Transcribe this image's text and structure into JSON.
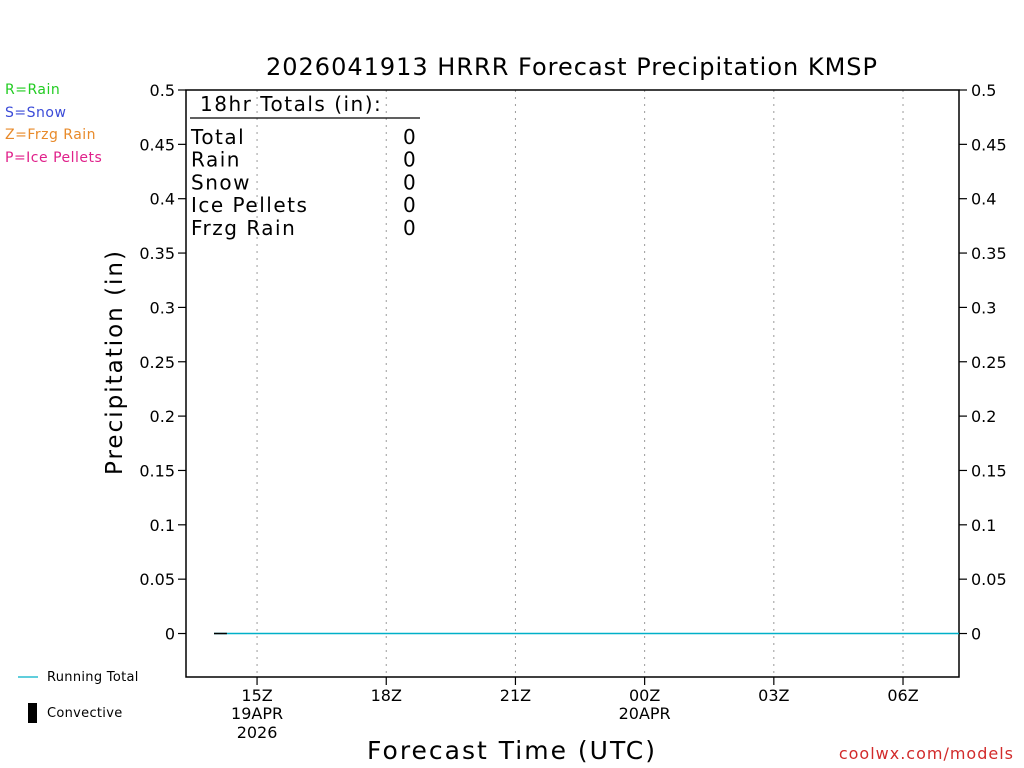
{
  "chart_data": {
    "type": "line",
    "title": "2026041913 HRRR Forecast Precipitation KMSP",
    "xlabel": "Forecast Time (UTC)",
    "ylabel": "Precipitation (in)",
    "ylim": [
      -0.04,
      0.5
    ],
    "y_ticks": [
      0,
      0.05,
      0.1,
      0.15,
      0.2,
      0.25,
      0.3,
      0.35,
      0.4,
      0.45,
      0.5
    ],
    "y_tick_labels": [
      "0",
      "0.05",
      "0.1",
      "0.15",
      "0.2",
      "0.25",
      "0.3",
      "0.35",
      "0.4",
      "0.45",
      "0.5"
    ],
    "x_range_hours": [
      13.35,
      31.3
    ],
    "x_ticks": [
      {
        "hour": 15,
        "label": "15Z",
        "sub1": "19APR",
        "sub2": "2026"
      },
      {
        "hour": 18,
        "label": "18Z",
        "sub1": "",
        "sub2": ""
      },
      {
        "hour": 21,
        "label": "21Z",
        "sub1": "",
        "sub2": ""
      },
      {
        "hour": 24,
        "label": "00Z",
        "sub1": "20APR",
        "sub2": ""
      },
      {
        "hour": 27,
        "label": "03Z",
        "sub1": "",
        "sub2": ""
      },
      {
        "hour": 30,
        "label": "06Z",
        "sub1": "",
        "sub2": ""
      }
    ],
    "grid": true,
    "series": [
      {
        "name": "Running Total",
        "color": "#00b0c8",
        "x": [
          14,
          31.3
        ],
        "values": [
          0,
          0
        ]
      },
      {
        "name": "Convective",
        "color": "#000000",
        "x": [
          14,
          14.3
        ],
        "values": [
          0,
          0
        ]
      }
    ],
    "totals_box": {
      "heading": "18hr Totals (in):",
      "rows": [
        {
          "label": "Total",
          "value": "0"
        },
        {
          "label": "Rain",
          "value": "0"
        },
        {
          "label": "Snow",
          "value": "0"
        },
        {
          "label": "Ice Pellets",
          "value": "0"
        },
        {
          "label": "Frzg Rain",
          "value": "0"
        }
      ]
    }
  },
  "ptype_legend": [
    {
      "text": "R=Rain",
      "color": "#22cc22"
    },
    {
      "text": "S=Snow",
      "color": "#3b4bd8"
    },
    {
      "text": "Z=Frzg Rain",
      "color": "#e88a2a"
    },
    {
      "text": "P=Ice Pellets",
      "color": "#e0208a"
    }
  ],
  "footer_legend": {
    "running_total": "Running Total",
    "convective": "Convective"
  },
  "watermark": "coolwx.com/models"
}
